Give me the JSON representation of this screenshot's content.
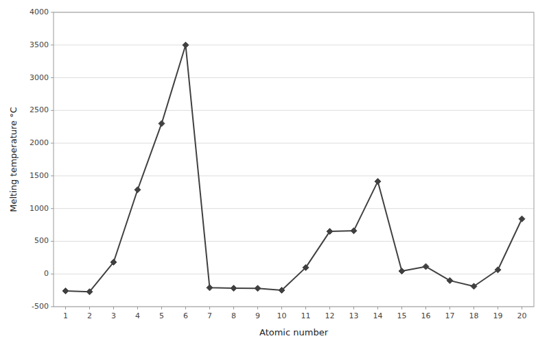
{
  "chart_data": {
    "type": "line",
    "x": [
      1,
      2,
      3,
      4,
      5,
      6,
      7,
      8,
      9,
      10,
      11,
      12,
      13,
      14,
      15,
      16,
      17,
      18,
      19,
      20
    ],
    "values": [
      -259,
      -272,
      180,
      1287,
      2300,
      3500,
      -210,
      -218,
      -220,
      -249,
      98,
      650,
      660,
      1414,
      44,
      113,
      -101,
      -189,
      63,
      842
    ],
    "xlabel": "Atomic number",
    "ylabel": "Melting temperature °C",
    "xlim": [
      0.5,
      20.5
    ],
    "ylim": [
      -500,
      4000
    ],
    "xticks": [
      1,
      2,
      3,
      4,
      5,
      6,
      7,
      8,
      9,
      10,
      11,
      12,
      13,
      14,
      15,
      16,
      17,
      18,
      19,
      20
    ],
    "yticks": [
      -500,
      0,
      500,
      1000,
      1500,
      2000,
      2500,
      3000,
      3500,
      4000
    ],
    "color": "#404040",
    "marker": "diamond",
    "grid": "y"
  }
}
